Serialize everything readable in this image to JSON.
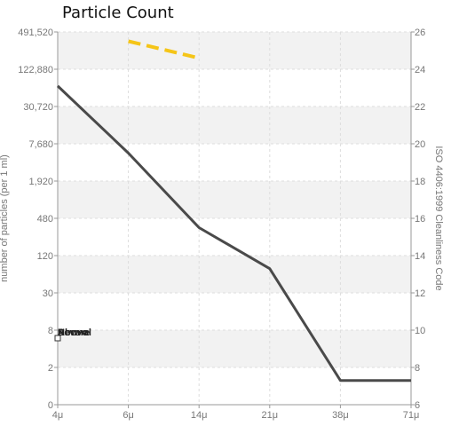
{
  "chart_data": {
    "type": "line",
    "title": "Particle Count",
    "x_categories": [
      "4μ",
      "6μ",
      "14μ",
      "21μ",
      "38μ",
      "71μ"
    ],
    "y_left_ticks": [
      "0",
      "2",
      "8",
      "30",
      "120",
      "480",
      "1,920",
      "7,680",
      "30,720",
      "122,880",
      "491,520"
    ],
    "y_right_ticks": [
      "6",
      "8",
      "10",
      "12",
      "14",
      "16",
      "18",
      "20",
      "22",
      "24",
      "26"
    ],
    "ylabel": "number of particles (per 1 ml)",
    "ylabel_right": "ISO 4406:1999 Cleanliness Code",
    "grid": true,
    "band_fill": "#f2f2f2",
    "series": [
      {
        "color": "#4a4a4a",
        "style": "solid",
        "points": [
          {
            "x": "4μ",
            "y_code": 23.1
          },
          {
            "x": "6μ",
            "y_code": 19.5
          },
          {
            "x": "14μ",
            "y_code": 15.5
          },
          {
            "x": "21μ",
            "y_code": 13.3
          },
          {
            "x": "38μ",
            "y_code": 7.3
          },
          {
            "x": "71μ",
            "y_code": 7.3
          }
        ]
      },
      {
        "color": "#f5c518",
        "style": "dashed",
        "points": [
          {
            "x": "6μ",
            "y_code": 25.5
          },
          {
            "x": "14μ",
            "y_code": 24.6
          }
        ]
      }
    ],
    "legend": {
      "placement": "lower-left",
      "overlapping_labels": [
        "Above",
        "Severe",
        "Normal"
      ]
    }
  }
}
